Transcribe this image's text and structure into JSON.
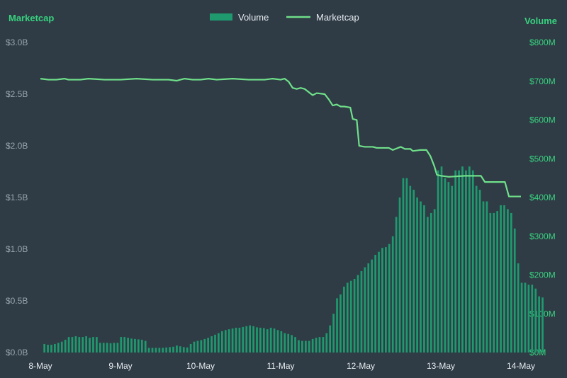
{
  "colors": {
    "background": "#2f3b45",
    "volume_bar": "#1f9a6e",
    "marketcap_line": "#6fe08a",
    "axis_title": "#38d27f",
    "left_tick": "#98a4ad",
    "right_tick": "#38d27f",
    "x_tick": "#e6ecef"
  },
  "chart_data": {
    "type": "bar",
    "left_axis_title": "Marketcap",
    "right_axis_title": "Volume",
    "legend": [
      "Volume",
      "Marketcap"
    ],
    "legend_placement": "top-center",
    "grid": false,
    "x_ticks": [
      "8-May",
      "9-May",
      "10-May",
      "11-May",
      "12-May",
      "13-May",
      "14-May"
    ],
    "left_ticks": [
      "$0.0B",
      "$0.5B",
      "$1.0B",
      "$1.5B",
      "$2.0B",
      "$2.5B",
      "$3.0B"
    ],
    "right_ticks": [
      "$0M",
      "$100M",
      "$200M",
      "$300M",
      "$400M",
      "$500M",
      "$600M",
      "$700M",
      "$800M"
    ],
    "ylim_left": [
      0,
      3.0
    ],
    "ylim_right": [
      0,
      800
    ],
    "xlim_days": [
      0,
      6
    ],
    "series": [
      {
        "name": "Volume",
        "kind": "bar",
        "axis": "right",
        "unit": "$M",
        "x_start_day": 0.05,
        "x_step_day": 0.0435,
        "values": [
          22,
          20,
          20,
          22,
          25,
          28,
          33,
          40,
          40,
          42,
          40,
          40,
          42,
          38,
          40,
          40,
          25,
          25,
          25,
          24,
          25,
          25,
          40,
          40,
          38,
          36,
          35,
          34,
          33,
          30,
          12,
          12,
          12,
          12,
          12,
          13,
          14,
          15,
          18,
          16,
          14,
          13,
          22,
          28,
          30,
          32,
          35,
          38,
          42,
          46,
          50,
          55,
          58,
          60,
          62,
          64,
          64,
          66,
          68,
          70,
          68,
          65,
          64,
          63,
          60,
          64,
          62,
          58,
          55,
          50,
          48,
          45,
          40,
          32,
          30,
          30,
          30,
          35,
          38,
          40,
          40,
          50,
          70,
          100,
          140,
          150,
          170,
          180,
          185,
          190,
          200,
          210,
          220,
          230,
          240,
          252,
          260,
          270,
          272,
          280,
          300,
          350,
          400,
          450,
          450,
          430,
          420,
          400,
          390,
          380,
          350,
          360,
          370,
          470,
          480,
          450,
          440,
          430,
          470,
          470,
          480,
          470,
          480,
          470,
          430,
          420,
          390,
          390,
          360,
          360,
          365,
          380,
          380,
          370,
          360,
          320,
          230,
          180,
          180,
          175,
          175,
          165,
          145,
          142
        ]
      },
      {
        "name": "Marketcap",
        "kind": "line",
        "axis": "left",
        "unit": "$B",
        "points": [
          [
            0.0,
            2.65
          ],
          [
            0.1,
            2.64
          ],
          [
            0.2,
            2.64
          ],
          [
            0.3,
            2.65
          ],
          [
            0.35,
            2.64
          ],
          [
            0.5,
            2.64
          ],
          [
            0.6,
            2.65
          ],
          [
            0.8,
            2.64
          ],
          [
            1.0,
            2.64
          ],
          [
            1.2,
            2.65
          ],
          [
            1.4,
            2.64
          ],
          [
            1.6,
            2.64
          ],
          [
            1.7,
            2.63
          ],
          [
            1.8,
            2.65
          ],
          [
            1.9,
            2.64
          ],
          [
            2.0,
            2.64
          ],
          [
            2.1,
            2.65
          ],
          [
            2.2,
            2.64
          ],
          [
            2.4,
            2.65
          ],
          [
            2.6,
            2.64
          ],
          [
            2.8,
            2.64
          ],
          [
            2.9,
            2.65
          ],
          [
            3.0,
            2.64
          ],
          [
            3.05,
            2.65
          ],
          [
            3.1,
            2.62
          ],
          [
            3.15,
            2.56
          ],
          [
            3.2,
            2.55
          ],
          [
            3.25,
            2.56
          ],
          [
            3.3,
            2.55
          ],
          [
            3.35,
            2.52
          ],
          [
            3.4,
            2.49
          ],
          [
            3.45,
            2.51
          ],
          [
            3.55,
            2.5
          ],
          [
            3.6,
            2.45
          ],
          [
            3.65,
            2.39
          ],
          [
            3.7,
            2.4
          ],
          [
            3.75,
            2.38
          ],
          [
            3.8,
            2.38
          ],
          [
            3.87,
            2.37
          ],
          [
            3.9,
            2.26
          ],
          [
            3.95,
            2.25
          ],
          [
            3.98,
            2.0
          ],
          [
            4.05,
            1.99
          ],
          [
            4.15,
            1.99
          ],
          [
            4.2,
            1.98
          ],
          [
            4.25,
            1.98
          ],
          [
            4.35,
            1.98
          ],
          [
            4.4,
            1.96
          ],
          [
            4.5,
            1.99
          ],
          [
            4.55,
            1.97
          ],
          [
            4.62,
            1.97
          ],
          [
            4.65,
            1.95
          ],
          [
            4.75,
            1.96
          ],
          [
            4.82,
            1.96
          ],
          [
            4.87,
            1.9
          ],
          [
            4.92,
            1.8
          ],
          [
            4.95,
            1.72
          ],
          [
            5.0,
            1.71
          ],
          [
            5.1,
            1.7
          ],
          [
            5.3,
            1.71
          ],
          [
            5.5,
            1.71
          ],
          [
            5.55,
            1.65
          ],
          [
            5.8,
            1.65
          ],
          [
            5.85,
            1.51
          ],
          [
            6.0,
            1.51
          ]
        ]
      }
    ]
  }
}
